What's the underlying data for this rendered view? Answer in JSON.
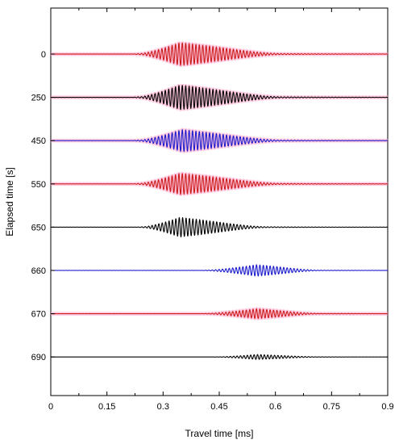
{
  "chart_data": {
    "type": "line",
    "title": "",
    "xlabel": "Travel time [ms]",
    "ylabel": "Elapsed time [s]",
    "xlim": [
      0,
      0.9
    ],
    "x_ticks": [
      0,
      0.15,
      0.3,
      0.45,
      0.6,
      0.75,
      0.9
    ],
    "x_tick_labels": [
      "0",
      "0.15",
      "0.3",
      "0.45",
      "0.6",
      "0.75",
      "0.9"
    ],
    "y_tick_labels": [
      "0",
      "250",
      "450",
      "550",
      "650",
      "660",
      "670",
      "690"
    ],
    "grid": false,
    "colors": {
      "red": "#cc1a1a",
      "black": "#000000",
      "blue": "#1a1acc",
      "glow": "#ff9fc6"
    },
    "series": [
      {
        "label": "0",
        "color": "red",
        "glow": true,
        "arrival_ms": 0.24,
        "peak_ms": 0.345,
        "amplitude": 0.28,
        "tail_end_ms": 0.62,
        "frequency_per_ms": 110
      },
      {
        "label": "250",
        "color": "black",
        "glow": true,
        "arrival_ms": 0.24,
        "peak_ms": 0.345,
        "amplitude": 0.3,
        "tail_end_ms": 0.62,
        "frequency_per_ms": 110
      },
      {
        "label": "450",
        "color": "blue",
        "glow": true,
        "arrival_ms": 0.24,
        "peak_ms": 0.35,
        "amplitude": 0.27,
        "tail_end_ms": 0.62,
        "frequency_per_ms": 110
      },
      {
        "label": "550",
        "color": "red",
        "glow": true,
        "arrival_ms": 0.24,
        "peak_ms": 0.345,
        "amplitude": 0.26,
        "tail_end_ms": 0.62,
        "frequency_per_ms": 110
      },
      {
        "label": "650",
        "color": "black",
        "glow": false,
        "arrival_ms": 0.25,
        "peak_ms": 0.345,
        "amplitude": 0.24,
        "tail_end_ms": 0.58,
        "frequency_per_ms": 110
      },
      {
        "label": "660",
        "color": "blue",
        "glow": false,
        "arrival_ms": 0.42,
        "peak_ms": 0.55,
        "amplitude": 0.14,
        "tail_end_ms": 0.72,
        "frequency_per_ms": 110
      },
      {
        "label": "670",
        "color": "red",
        "glow": true,
        "arrival_ms": 0.42,
        "peak_ms": 0.55,
        "amplitude": 0.12,
        "tail_end_ms": 0.72,
        "frequency_per_ms": 110
      },
      {
        "label": "690",
        "color": "black",
        "glow": false,
        "arrival_ms": 0.45,
        "peak_ms": 0.55,
        "amplitude": 0.06,
        "tail_end_ms": 0.72,
        "frequency_per_ms": 110
      }
    ]
  }
}
